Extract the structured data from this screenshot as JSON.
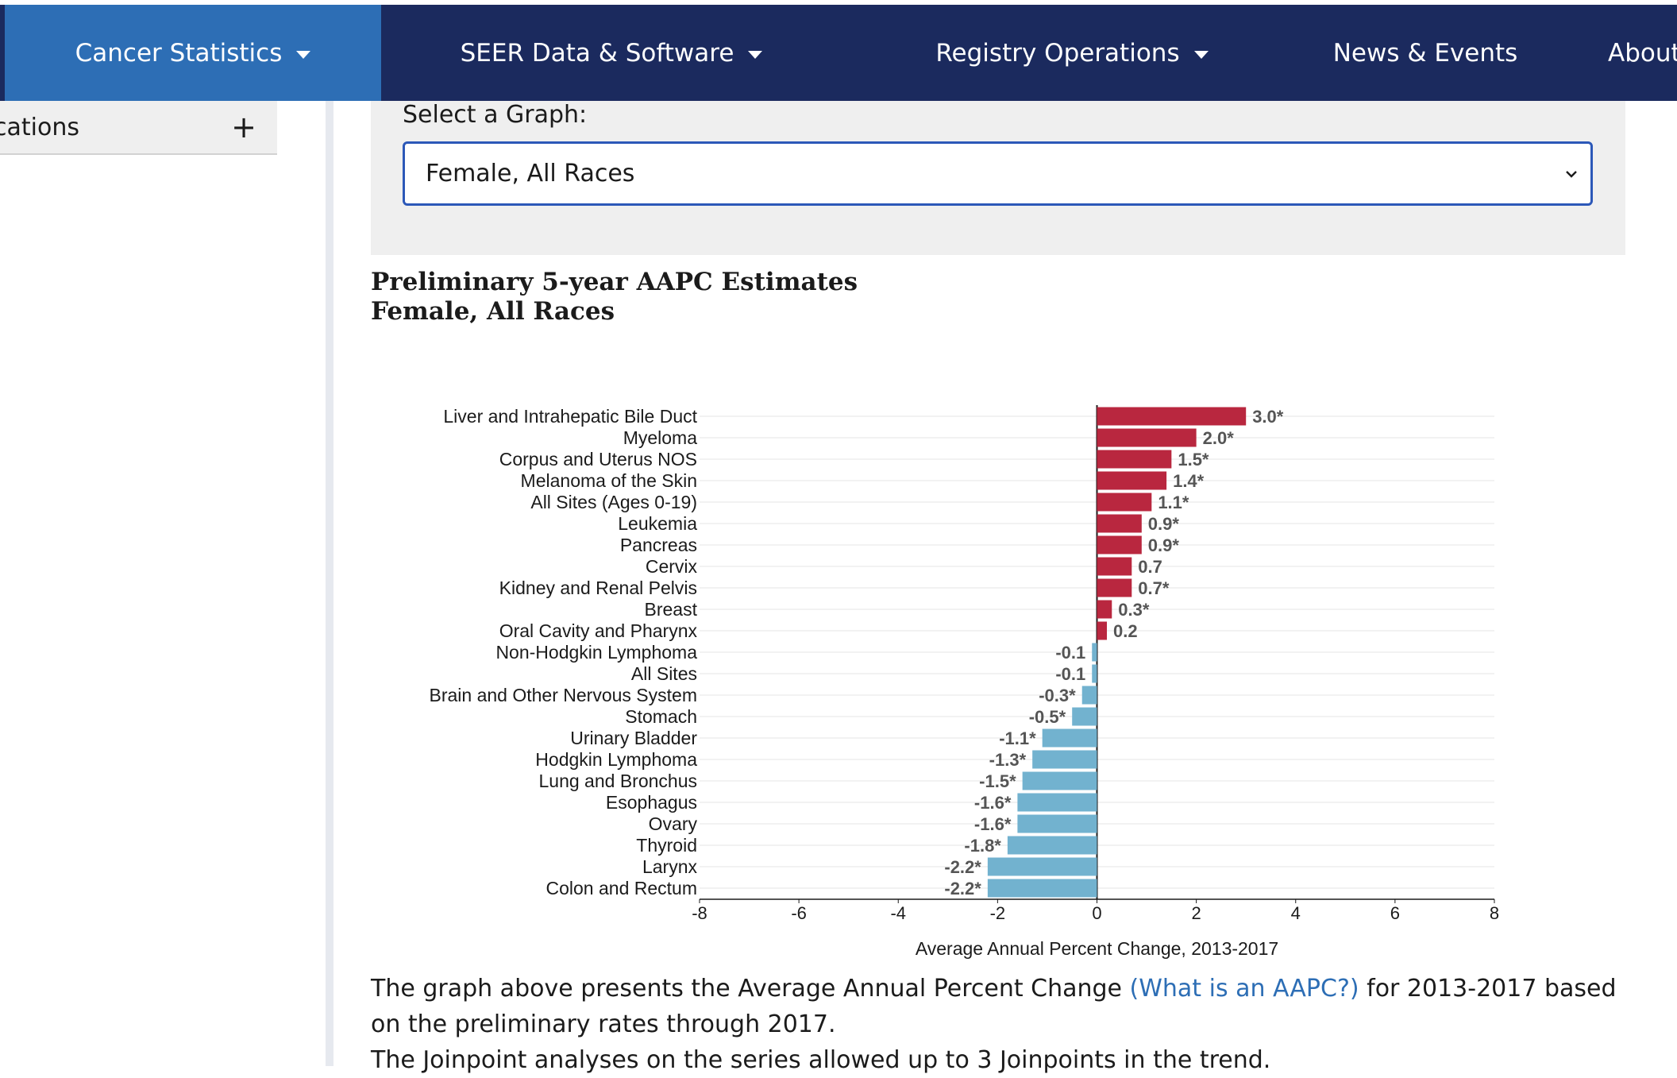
{
  "nav": {
    "items": [
      {
        "label": "Cancer Statistics",
        "caret": true,
        "active": true
      },
      {
        "label": "SEER Data & Software",
        "caret": true,
        "active": false
      },
      {
        "label": "Registry Operations",
        "caret": true,
        "active": false
      },
      {
        "label": "News & Events",
        "caret": false,
        "active": false
      },
      {
        "label": "About",
        "caret": false,
        "active": false
      }
    ]
  },
  "sidebar": {
    "item_label": "cations",
    "expand_symbol": "+"
  },
  "graph_selector": {
    "label": "Select a Graph:",
    "selected": "Female, All Races"
  },
  "chart_title": {
    "line1": "Preliminary 5-year AAPC Estimates",
    "line2": "Female, All Races"
  },
  "chart_data": {
    "type": "bar",
    "orientation": "horizontal",
    "categories": [
      "Liver and Intrahepatic Bile Duct",
      "Myeloma",
      "Corpus and Uterus NOS",
      "Melanoma of the Skin",
      "All Sites (Ages 0-19)",
      "Leukemia",
      "Pancreas",
      "Cervix",
      "Kidney and Renal Pelvis",
      "Breast",
      "Oral Cavity and Pharynx",
      "Non-Hodgkin Lymphoma",
      "All Sites",
      "Brain and Other Nervous System",
      "Stomach",
      "Urinary Bladder",
      "Hodgkin Lymphoma",
      "Lung and Bronchus",
      "Esophagus",
      "Ovary",
      "Thyroid",
      "Larynx",
      "Colon and Rectum"
    ],
    "values": [
      3.0,
      2.0,
      1.5,
      1.4,
      1.1,
      0.9,
      0.9,
      0.7,
      0.7,
      0.3,
      0.2,
      -0.1,
      -0.1,
      -0.3,
      -0.5,
      -1.1,
      -1.3,
      -1.5,
      -1.6,
      -1.6,
      -1.8,
      -2.2,
      -2.2
    ],
    "value_labels": [
      "3.0*",
      "2.0*",
      "1.5*",
      "1.4*",
      "1.1*",
      "0.9*",
      "0.9*",
      "0.7",
      "0.7*",
      "0.3*",
      "0.2",
      "-0.1",
      "-0.1",
      "-0.3*",
      "-0.5*",
      "-1.1*",
      "-1.3*",
      "-1.5*",
      "-1.6*",
      "-1.6*",
      "-1.8*",
      "-2.2*",
      "-2.2*"
    ],
    "xlim": [
      -8,
      8
    ],
    "xticks": [
      -8,
      -6,
      -4,
      -2,
      0,
      2,
      4,
      6,
      8
    ],
    "xlabel": "Average Annual Percent Change, 2013-2017",
    "positive_color": "#b9273f",
    "negative_color": "#72b2cf",
    "grid": true
  },
  "description": {
    "text_before_link": "The graph above presents the Average Annual Percent Change ",
    "link_text": "(What is an AAPC?)",
    "text_after_link": " for 2013-2017 based on the preliminary rates through 2017.",
    "line2": "The Joinpoint analyses on the series allowed up to 3 Joinpoints in the trend."
  }
}
